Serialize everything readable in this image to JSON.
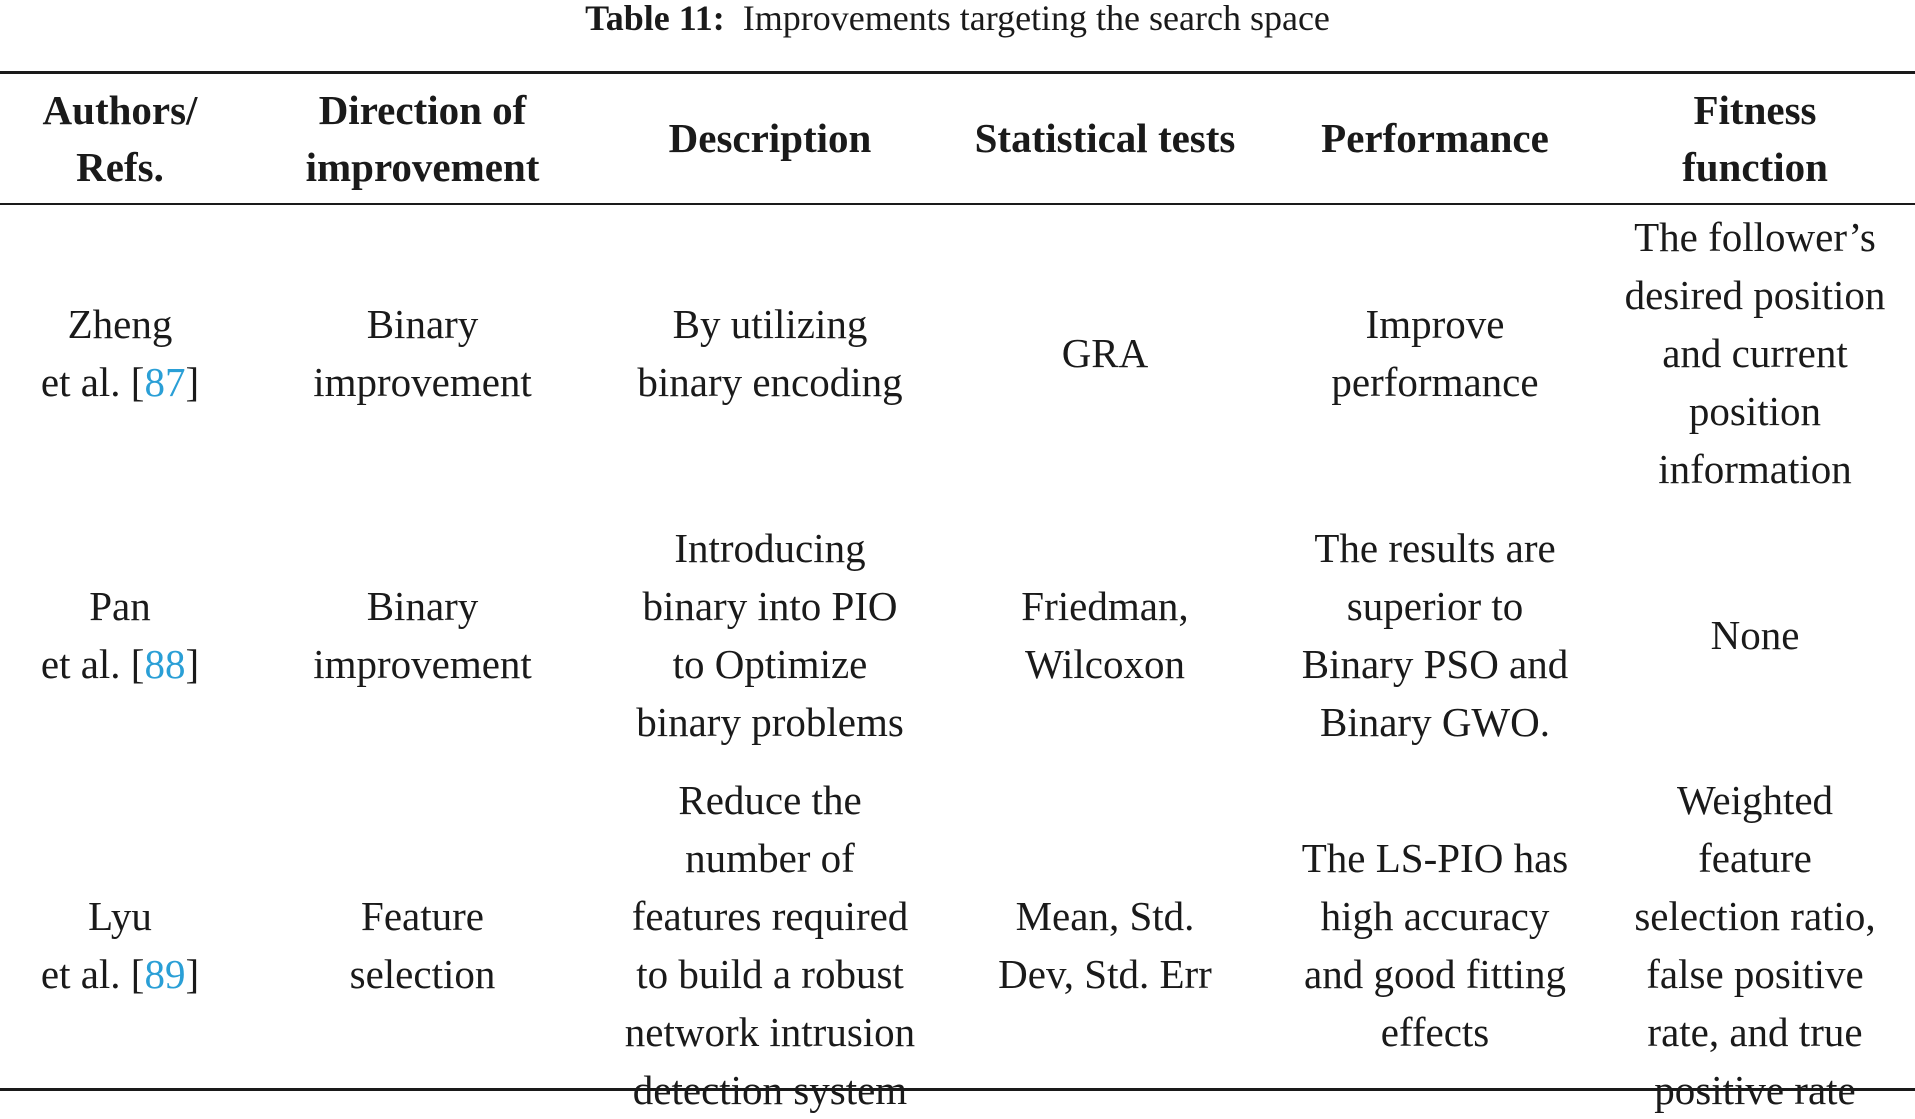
{
  "caption": {
    "label": "Table 11:",
    "text": "Improvements targeting the search space"
  },
  "headers": [
    {
      "lines": [
        "Authors/",
        "Refs."
      ]
    },
    {
      "lines": [
        "Direction of",
        "improvement"
      ]
    },
    {
      "lines": [
        "Description"
      ]
    },
    {
      "lines": [
        "Statistical tests"
      ]
    },
    {
      "lines": [
        "Performance"
      ]
    },
    {
      "lines": [
        "Fitness",
        "function"
      ]
    }
  ],
  "rows": [
    {
      "author": {
        "name": "Zheng",
        "etal": "et al. [",
        "ref": "87",
        "close": "]"
      },
      "direction": [
        "Binary",
        "improvement"
      ],
      "description": [
        "By utilizing",
        "binary encoding"
      ],
      "tests": [
        "GRA"
      ],
      "performance": [
        "Improve",
        "performance"
      ],
      "fitness": [
        "The follower’s",
        "desired position",
        "and current",
        "position",
        "information"
      ]
    },
    {
      "author": {
        "name": "Pan",
        "etal": "et al. [",
        "ref": "88",
        "close": "]"
      },
      "direction": [
        "Binary",
        "improvement"
      ],
      "description": [
        "Introducing",
        "binary into PIO",
        "to Optimize",
        "binary problems"
      ],
      "tests": [
        "Friedman,",
        "Wilcoxon"
      ],
      "performance": [
        "The results are",
        "superior to",
        "Binary PSO and",
        "Binary GWO."
      ],
      "fitness": [
        "None"
      ]
    },
    {
      "author": {
        "name": "Lyu",
        "etal": "et al. [",
        "ref": "89",
        "close": "]"
      },
      "direction": [
        "Feature",
        "selection"
      ],
      "description": [
        "Reduce the",
        "number of",
        "features required",
        "to build a robust",
        "network intrusion",
        "detection system"
      ],
      "tests": [
        "Mean, Std.",
        "Dev, Std. Err"
      ],
      "performance": [
        "The LS-PIO has",
        "high accuracy",
        "and good fitting",
        "effects"
      ],
      "fitness": [
        "Weighted",
        "feature",
        "selection ratio,",
        "false positive",
        "rate, and true",
        "positive rate"
      ]
    }
  ],
  "colors": {
    "text": "#1a1a1a",
    "reference_link": "#2a9fd6"
  }
}
